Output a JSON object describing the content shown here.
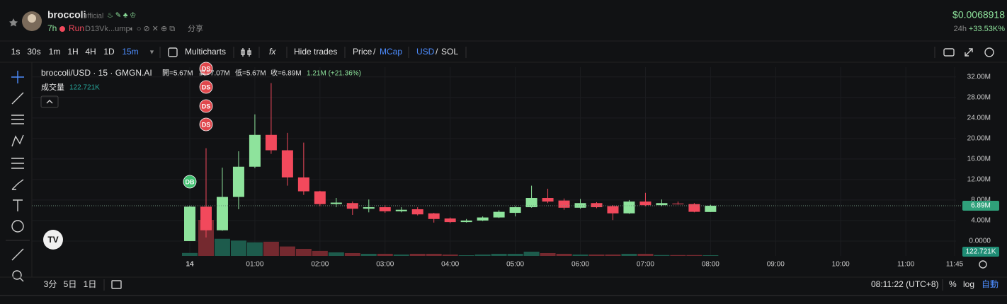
{
  "header": {
    "name": "broccoli",
    "badge": "official",
    "age": "7h",
    "run": "Run",
    "address": "D13Vk...ump",
    "share": "分享",
    "price": "$0.0068918",
    "change_period": "24h",
    "change": "+33.53K%"
  },
  "toolbar": {
    "intervals": [
      "1s",
      "30s",
      "1m",
      "1H",
      "4H",
      "1D",
      "15m"
    ],
    "active_interval": 6,
    "multicharts": "Multicharts",
    "hide_trades": "Hide trades",
    "price": "Price",
    "mcap": "MCap",
    "usd": "USD",
    "sol": "SOL",
    "separator": "/"
  },
  "chart_data": {
    "type": "candlestick",
    "legend": {
      "symbol": "broccoli/USD · 15 · GMGN.AI",
      "open": "開=5.67M",
      "high": "高=7.07M",
      "low": "低=5.67M",
      "close": "收=6.89M",
      "change": "1.21M (+21.36%)"
    },
    "volume_title": "成交量",
    "markers": [
      "DS",
      "DS",
      "DS",
      "DS",
      "DB"
    ],
    "categories": [
      "14",
      null,
      null,
      null,
      "01:00",
      null,
      null,
      null,
      "02:00",
      null,
      null,
      null,
      "03:00",
      null,
      null,
      null,
      "04:00",
      null,
      null,
      null,
      "05:00",
      null,
      null,
      null,
      "06:00",
      null,
      null,
      null,
      "07:00",
      null,
      null,
      null,
      "08:00",
      null,
      null,
      null,
      "09:00",
      null,
      null,
      null,
      "10:00",
      null,
      null,
      null,
      "11:00",
      null,
      null,
      "11:45"
    ],
    "open": [
      0.0,
      6.7,
      2.1,
      8.6,
      14.5,
      20.7,
      17.7,
      12.4,
      9.7,
      7.2,
      7.4,
      6.3,
      6.6,
      5.8,
      6.2,
      5.4,
      4.4,
      3.7,
      4.0,
      4.6,
      5.5,
      6.6,
      8.4,
      7.9,
      6.5,
      7.4,
      6.8,
      5.4,
      7.7,
      7.0,
      7.3,
      7.2,
      5.67,
      null,
      null,
      null,
      null,
      null,
      null,
      null,
      null,
      null,
      null,
      null,
      null,
      null,
      null,
      null
    ],
    "high": [
      6.9,
      18.1,
      14.3,
      17.5,
      24.7,
      30.8,
      21.1,
      19.2,
      9.8,
      8.4,
      7.7,
      8.1,
      7.0,
      6.6,
      6.6,
      5.5,
      4.6,
      4.3,
      4.8,
      6.0,
      6.8,
      10.8,
      10.2,
      8.3,
      8.2,
      7.6,
      7.0,
      8.0,
      9.4,
      8.1,
      7.7,
      7.4,
      7.07,
      null,
      null,
      null,
      null,
      null,
      null,
      null,
      null,
      null,
      null,
      null,
      null,
      null,
      null,
      null
    ],
    "low": [
      0.0,
      0.7,
      2.0,
      6.2,
      14.2,
      17.0,
      10.8,
      9.0,
      6.8,
      6.6,
      5.1,
      5.6,
      5.5,
      5.6,
      5.0,
      3.6,
      3.5,
      3.6,
      3.9,
      4.5,
      4.8,
      6.5,
      7.4,
      6.1,
      6.3,
      6.4,
      4.1,
      5.3,
      6.8,
      6.8,
      7.1,
      5.6,
      5.67,
      null,
      null,
      null,
      null,
      null,
      null,
      null,
      null,
      null,
      null,
      null,
      null,
      null,
      null,
      null
    ],
    "close": [
      6.7,
      2.1,
      8.6,
      14.5,
      20.7,
      17.7,
      12.4,
      9.7,
      7.2,
      7.5,
      6.3,
      6.6,
      5.8,
      6.1,
      5.2,
      4.3,
      3.7,
      4.0,
      4.6,
      5.7,
      6.6,
      8.4,
      7.7,
      6.5,
      7.4,
      6.6,
      5.4,
      7.7,
      7.0,
      7.4,
      7.2,
      5.7,
      6.89,
      null,
      null,
      null,
      null,
      null,
      null,
      null,
      null,
      null,
      null,
      null,
      null,
      null,
      null,
      null
    ],
    "last_price_label": {
      "value": 6.89,
      "label": "6.89M"
    },
    "volume": {
      "values": [
        500,
        6100,
        2900,
        2600,
        2300,
        2400,
        1600,
        1200,
        850,
        600,
        480,
        360,
        360,
        240,
        360,
        360,
        240,
        120,
        240,
        360,
        360,
        720,
        480,
        360,
        240,
        240,
        240,
        360,
        360,
        150,
        150,
        150,
        122.721,
        null,
        null,
        null,
        null,
        null,
        null,
        null,
        null,
        null,
        null,
        null,
        null,
        null,
        null,
        null
      ],
      "last_label": "122.721K"
    },
    "ylim": [
      -2.9,
      33.9
    ],
    "yticks": [
      {
        "value": 0,
        "label": "0.0000"
      },
      {
        "value": 4,
        "label": "4.00M"
      },
      {
        "value": 8,
        "label": "8.00M"
      },
      {
        "value": 12,
        "label": "12.00M"
      },
      {
        "value": 16,
        "label": "16.00M"
      },
      {
        "value": 20,
        "label": "20.00M"
      },
      {
        "value": 24,
        "label": "24.00M"
      },
      {
        "value": 28,
        "label": "28.00M"
      },
      {
        "value": 32,
        "label": "32.00M"
      }
    ],
    "grid": true,
    "up_color": "#8ee39c",
    "down_color": "#f2495c",
    "up_volume_color": "#1d5b4c",
    "down_volume_color": "#74292f"
  },
  "footer": {
    "ranges": [
      "3分",
      "5日",
      "1日"
    ],
    "clock": "08:11:22 (UTC+8)",
    "percent": "%",
    "log": "log",
    "auto": "自動"
  }
}
